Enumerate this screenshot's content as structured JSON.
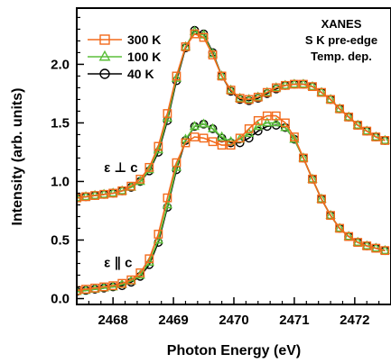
{
  "chart_data": {
    "type": "line",
    "title": "",
    "xlabel": "Photon Energy (eV)",
    "ylabel": "Intensity (arb. units)",
    "xlim": [
      2467.4,
      2472.6
    ],
    "ylim": [
      -0.05,
      2.48
    ],
    "xticks": [
      2468,
      2469,
      2470,
      2471,
      2472
    ],
    "yticks": [
      0.0,
      0.5,
      1.0,
      1.5,
      2.0
    ],
    "x_tick_labels": [
      "2468",
      "2469",
      "2470",
      "2471",
      "2472"
    ],
    "y_tick_labels": [
      "0.0",
      "0.5",
      "1.0",
      "1.5",
      "2.0"
    ],
    "grid": false,
    "legend_position": "top-left",
    "annotation_lines": [
      "XANES",
      "S K pre-edge",
      "Temp. dep."
    ],
    "panel_labels": [
      {
        "text": "ε ⊥ c",
        "x": 2467.85,
        "y": 1.08
      },
      {
        "text": "ε ∥ c",
        "x": 2467.85,
        "y": 0.27
      }
    ],
    "marker_x": [
      2467.4,
      2467.55,
      2467.7,
      2467.85,
      2468.0,
      2468.15,
      2468.3,
      2468.45,
      2468.6,
      2468.75,
      2468.9,
      2469.05,
      2469.2,
      2469.35,
      2469.5,
      2469.65,
      2469.8,
      2469.95,
      2470.1,
      2470.25,
      2470.4,
      2470.55,
      2470.7,
      2470.85,
      2471.0,
      2471.15,
      2471.3,
      2471.45,
      2471.6,
      2471.75,
      2471.9,
      2472.05,
      2472.2,
      2472.35,
      2472.5
    ],
    "series": [
      {
        "name": "300 K",
        "color": "#f26a1b",
        "marker": "square",
        "values_perp": [
          0.86,
          0.87,
          0.88,
          0.89,
          0.9,
          0.92,
          0.96,
          1.02,
          1.12,
          1.3,
          1.58,
          1.9,
          2.15,
          2.26,
          2.23,
          2.08,
          1.9,
          1.78,
          1.71,
          1.7,
          1.72,
          1.76,
          1.8,
          1.82,
          1.83,
          1.83,
          1.81,
          1.76,
          1.7,
          1.62,
          1.55,
          1.48,
          1.43,
          1.38,
          1.35
        ],
        "values_para": [
          0.07,
          0.08,
          0.09,
          0.1,
          0.11,
          0.13,
          0.16,
          0.22,
          0.34,
          0.55,
          0.86,
          1.16,
          1.33,
          1.38,
          1.37,
          1.34,
          1.31,
          1.31,
          1.37,
          1.45,
          1.52,
          1.56,
          1.56,
          1.5,
          1.38,
          1.2,
          1.02,
          0.85,
          0.71,
          0.6,
          0.53,
          0.48,
          0.45,
          0.43,
          0.41
        ]
      },
      {
        "name": "100 K",
        "color": "#5bbf3a",
        "marker": "triangle",
        "values_perp": [
          0.86,
          0.87,
          0.88,
          0.89,
          0.9,
          0.92,
          0.95,
          1.0,
          1.1,
          1.27,
          1.54,
          1.88,
          2.15,
          2.28,
          2.25,
          2.09,
          1.9,
          1.78,
          1.71,
          1.7,
          1.72,
          1.76,
          1.8,
          1.82,
          1.83,
          1.83,
          1.81,
          1.76,
          1.7,
          1.62,
          1.55,
          1.48,
          1.43,
          1.38,
          1.35
        ],
        "values_para": [
          0.06,
          0.07,
          0.08,
          0.09,
          0.1,
          0.12,
          0.15,
          0.2,
          0.31,
          0.5,
          0.8,
          1.12,
          1.36,
          1.47,
          1.49,
          1.45,
          1.38,
          1.34,
          1.36,
          1.41,
          1.47,
          1.5,
          1.5,
          1.46,
          1.36,
          1.2,
          1.02,
          0.85,
          0.71,
          0.6,
          0.53,
          0.48,
          0.45,
          0.43,
          0.41
        ]
      },
      {
        "name": "40 K",
        "color": "#000000",
        "marker": "circle",
        "values_perp": [
          0.86,
          0.87,
          0.88,
          0.89,
          0.9,
          0.92,
          0.95,
          1.0,
          1.09,
          1.25,
          1.52,
          1.86,
          2.14,
          2.29,
          2.26,
          2.1,
          1.9,
          1.77,
          1.7,
          1.69,
          1.71,
          1.75,
          1.79,
          1.82,
          1.83,
          1.83,
          1.81,
          1.76,
          1.7,
          1.62,
          1.55,
          1.48,
          1.43,
          1.38,
          1.35
        ],
        "values_para": [
          0.06,
          0.07,
          0.08,
          0.09,
          0.1,
          0.11,
          0.14,
          0.19,
          0.29,
          0.48,
          0.78,
          1.1,
          1.35,
          1.47,
          1.49,
          1.45,
          1.37,
          1.33,
          1.33,
          1.37,
          1.43,
          1.47,
          1.48,
          1.46,
          1.36,
          1.2,
          1.02,
          0.85,
          0.71,
          0.6,
          0.53,
          0.48,
          0.45,
          0.43,
          0.41
        ]
      }
    ]
  }
}
